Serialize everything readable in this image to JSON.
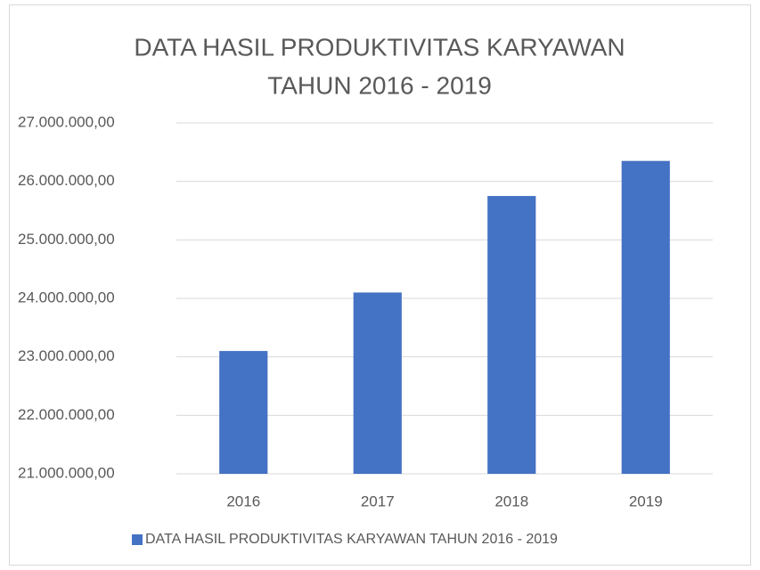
{
  "chart_data": {
    "type": "bar",
    "title": [
      "DATA HASIL PRODUKTIVITAS KARYAWAN",
      "TAHUN 2016 - 2019"
    ],
    "categories": [
      "2016",
      "2017",
      "2018",
      "2019"
    ],
    "series": [
      {
        "name": "DATA HASIL PRODUKTIVITAS KARYAWAN TAHUN 2016 - 2019",
        "color": "#4472c4",
        "values": [
          23100000,
          24100000,
          25750000,
          26350000
        ]
      }
    ],
    "ylim": [
      21000000,
      27000000
    ],
    "yticks": [
      {
        "value": 21000000,
        "label": "21.000.000,00"
      },
      {
        "value": 22000000,
        "label": "22.000.000,00"
      },
      {
        "value": 23000000,
        "label": "23.000.000,00"
      },
      {
        "value": 24000000,
        "label": "24.000.000,00"
      },
      {
        "value": 25000000,
        "label": "25.000.000,00"
      },
      {
        "value": 26000000,
        "label": "26.000.000,00"
      },
      {
        "value": 27000000,
        "label": "27.000.000,00"
      }
    ],
    "grid": true,
    "legend": "bottom"
  }
}
